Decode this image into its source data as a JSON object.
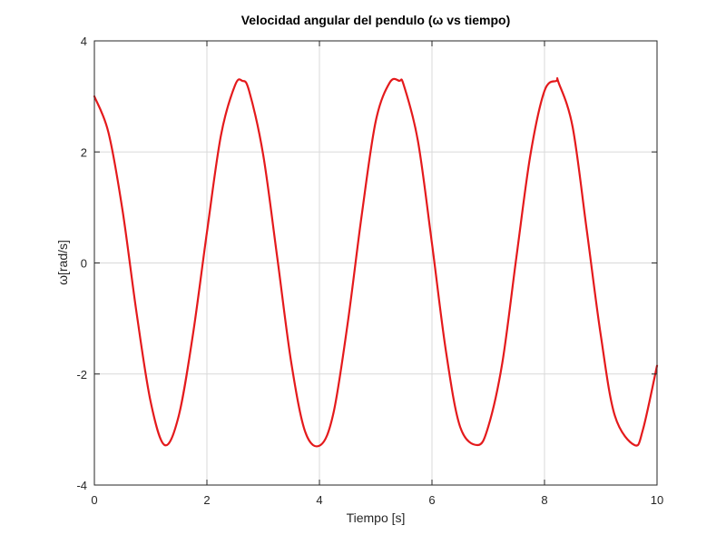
{
  "chart_data": {
    "type": "line",
    "title": "Velocidad angular del pendulo (ω vs tiempo)",
    "xlabel": "Tiempo [s]",
    "ylabel": "ω[rad/s]",
    "xlim": [
      0,
      10
    ],
    "ylim": [
      -4,
      4
    ],
    "xticks": [
      "0",
      "2",
      "4",
      "6",
      "8",
      "10"
    ],
    "yticks": [
      "-4",
      "-2",
      "0",
      "2",
      "4"
    ],
    "grid": true,
    "legend": "none",
    "series": [
      {
        "color": "#e41a1c",
        "x": [
          0.0,
          0.25,
          0.5,
          0.75,
          1.0,
          1.25,
          1.5,
          1.75,
          2.0,
          2.25,
          2.5,
          2.63,
          2.75,
          3.0,
          3.25,
          3.5,
          3.75,
          4.02,
          4.25,
          4.5,
          4.75,
          5.0,
          5.25,
          5.42,
          5.5,
          5.75,
          6.0,
          6.25,
          6.5,
          6.81,
          7.0,
          7.25,
          7.5,
          7.75,
          8.0,
          8.21,
          8.25,
          8.5,
          8.75,
          9.0,
          9.25,
          9.6,
          9.75,
          10.0
        ],
        "y": [
          3.0,
          2.35,
          0.95,
          -0.9,
          -2.5,
          -3.28,
          -2.75,
          -1.3,
          0.55,
          2.3,
          3.2,
          3.28,
          3.1,
          1.95,
          0.1,
          -1.8,
          -3.05,
          -3.28,
          -2.7,
          -1.1,
          0.85,
          2.55,
          3.25,
          3.28,
          3.2,
          2.2,
          0.35,
          -1.6,
          -2.95,
          -3.28,
          -2.95,
          -1.8,
          0.1,
          1.95,
          3.1,
          3.28,
          3.25,
          2.45,
          0.6,
          -1.3,
          -2.75,
          -3.28,
          -3.0,
          -1.85
        ]
      }
    ]
  }
}
